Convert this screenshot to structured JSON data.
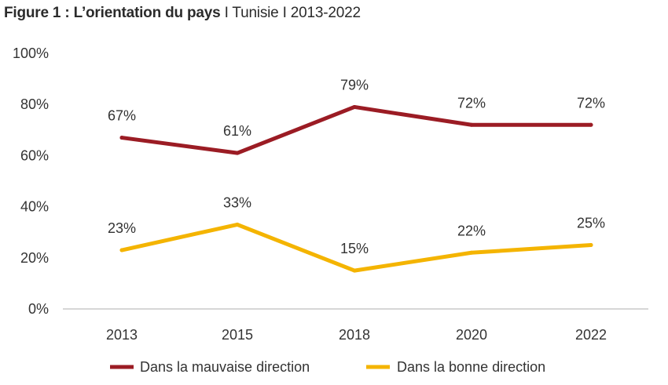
{
  "title": {
    "main": "Figure 1 : L’orientation du pays",
    "sub": "I Tunisie I 2013-2022"
  },
  "colors": {
    "series_1": "#9b1c24",
    "series_2": "#f4b400",
    "axis": "#c8c8c8",
    "text": "#333333"
  },
  "chart_data": {
    "type": "line",
    "categories": [
      "2013",
      "2015",
      "2018",
      "2020",
      "2022"
    ],
    "ylim": [
      0,
      100
    ],
    "yticks": [
      0,
      20,
      40,
      60,
      80,
      100
    ],
    "ytick_labels": [
      "0%",
      "20%",
      "40%",
      "60%",
      "80%",
      "100%"
    ],
    "grid": false,
    "legend_position": "bottom",
    "series": [
      {
        "name": "Dans la mauvaise direction",
        "values": [
          67,
          61,
          79,
          72,
          72
        ],
        "labels": [
          "67%",
          "61%",
          "79%",
          "72%",
          "72%"
        ]
      },
      {
        "name": "Dans la bonne direction",
        "values": [
          23,
          33,
          15,
          22,
          25
        ],
        "labels": [
          "23%",
          "33%",
          "15%",
          "22%",
          "25%"
        ]
      }
    ]
  }
}
